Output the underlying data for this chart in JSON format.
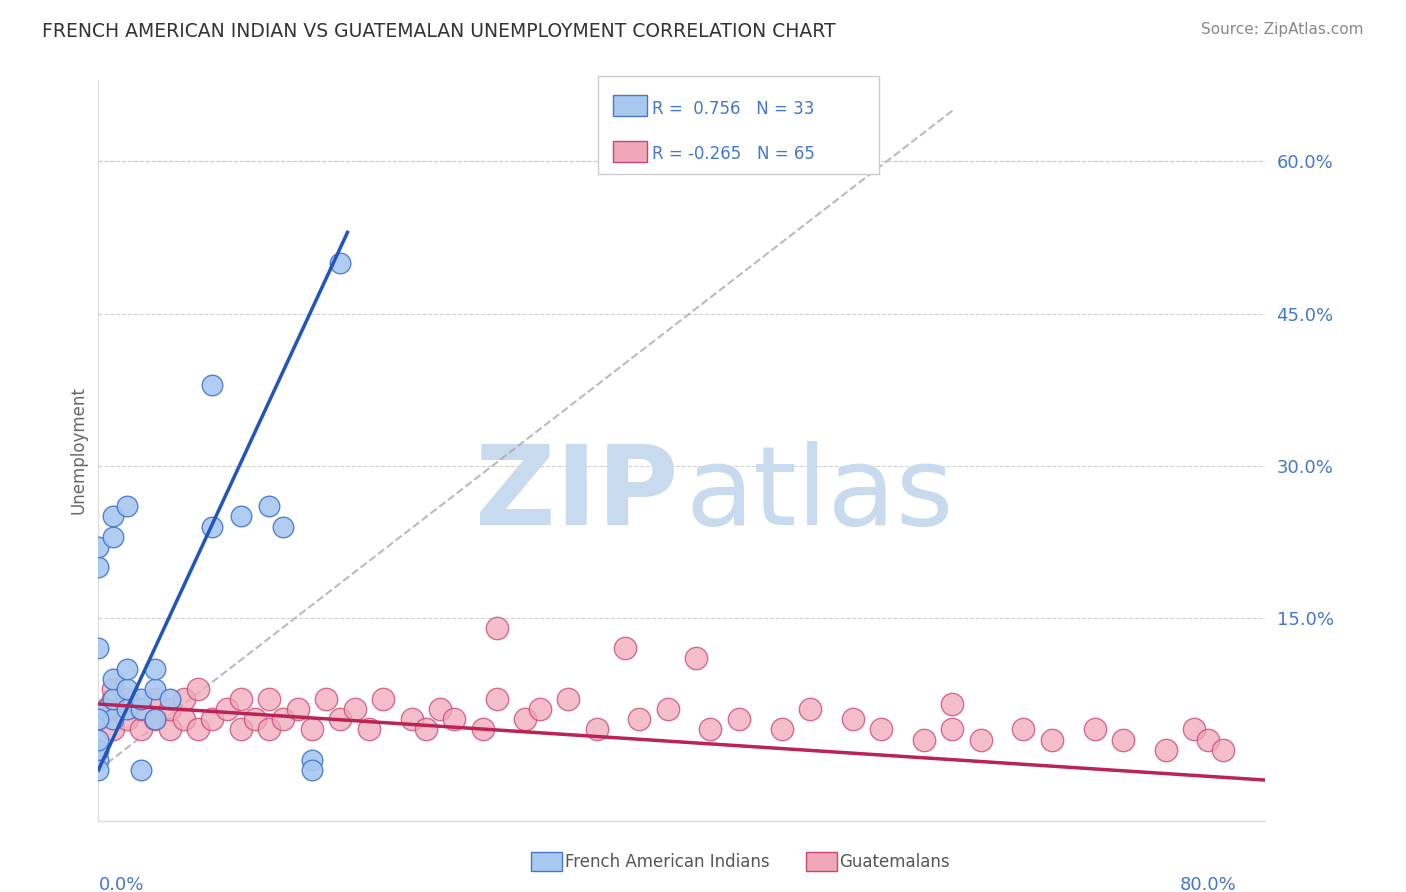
{
  "title": "FRENCH AMERICAN INDIAN VS GUATEMALAN UNEMPLOYMENT CORRELATION CHART",
  "source": "Source: ZipAtlas.com",
  "ylabel": "Unemployment",
  "ytick_vals": [
    0.0,
    0.15,
    0.3,
    0.45,
    0.6
  ],
  "ytick_labels": [
    "",
    "15.0%",
    "30.0%",
    "45.0%",
    "60.0%"
  ],
  "xlim": [
    0.0,
    0.82
  ],
  "ylim": [
    -0.05,
    0.68
  ],
  "blue_color": "#A8C8F0",
  "pink_color": "#F0A8B8",
  "blue_edge_color": "#4477CC",
  "pink_edge_color": "#CC4477",
  "blue_line_color": "#2255BB",
  "pink_line_color": "#BB2255",
  "tick_label_color": "#4477CC",
  "title_color": "#333333",
  "source_color": "#888888",
  "ylabel_color": "#666666",
  "grid_color": "#CCCCCC",
  "background_color": "#FFFFFF",
  "watermark_zip_color": "#C8DAEE",
  "watermark_atlas_color": "#C8DAEE",
  "legend_box_color": "#FFFFFF",
  "legend_border_color": "#CCCCCC",
  "legend_text_color": "#4477CC",
  "bottom_legend_text_color": "#555555",
  "blue_scatter_x": [
    0.005,
    0.01,
    0.01,
    0.01,
    0.02,
    0.02,
    0.02,
    0.03,
    0.03,
    0.04,
    0.04,
    0.04,
    0.05,
    0.0,
    0.0,
    0.0,
    0.0,
    0.0,
    0.0,
    0.0,
    0.01,
    0.01,
    0.02,
    0.08,
    0.08,
    0.1,
    0.12,
    0.13,
    0.15,
    0.15,
    0.17,
    0.0,
    0.03
  ],
  "blue_scatter_y": [
    0.06,
    0.05,
    0.07,
    0.09,
    0.06,
    0.08,
    0.1,
    0.06,
    0.07,
    0.05,
    0.08,
    0.1,
    0.07,
    0.01,
    0.02,
    0.03,
    0.12,
    0.2,
    0.22,
    0.05,
    0.25,
    0.23,
    0.26,
    0.24,
    0.38,
    0.25,
    0.26,
    0.24,
    0.01,
    0.0,
    0.5,
    0.0,
    0.0
  ],
  "pink_scatter_x": [
    0.0,
    0.005,
    0.01,
    0.01,
    0.01,
    0.02,
    0.02,
    0.03,
    0.03,
    0.04,
    0.04,
    0.05,
    0.05,
    0.06,
    0.06,
    0.07,
    0.07,
    0.08,
    0.09,
    0.1,
    0.1,
    0.11,
    0.12,
    0.12,
    0.13,
    0.14,
    0.15,
    0.16,
    0.17,
    0.18,
    0.19,
    0.2,
    0.22,
    0.23,
    0.24,
    0.25,
    0.27,
    0.28,
    0.3,
    0.31,
    0.33,
    0.35,
    0.37,
    0.38,
    0.4,
    0.42,
    0.43,
    0.45,
    0.48,
    0.5,
    0.53,
    0.55,
    0.58,
    0.6,
    0.62,
    0.65,
    0.67,
    0.7,
    0.72,
    0.75,
    0.77,
    0.78,
    0.79,
    0.6,
    0.28
  ],
  "pink_scatter_y": [
    0.05,
    0.06,
    0.04,
    0.07,
    0.08,
    0.05,
    0.07,
    0.04,
    0.06,
    0.05,
    0.07,
    0.04,
    0.06,
    0.05,
    0.07,
    0.04,
    0.08,
    0.05,
    0.06,
    0.04,
    0.07,
    0.05,
    0.04,
    0.07,
    0.05,
    0.06,
    0.04,
    0.07,
    0.05,
    0.06,
    0.04,
    0.07,
    0.05,
    0.04,
    0.06,
    0.05,
    0.04,
    0.14,
    0.05,
    0.06,
    0.07,
    0.04,
    0.12,
    0.05,
    0.06,
    0.11,
    0.04,
    0.05,
    0.04,
    0.06,
    0.05,
    0.04,
    0.03,
    0.04,
    0.03,
    0.04,
    0.03,
    0.04,
    0.03,
    0.02,
    0.04,
    0.03,
    0.02,
    0.065,
    0.07
  ],
  "blue_line_x": [
    0.0,
    0.175
  ],
  "blue_line_y": [
    0.0,
    0.53
  ],
  "pink_line_x": [
    0.0,
    0.82
  ],
  "pink_line_y": [
    0.065,
    -0.01
  ],
  "dash_line_x": [
    0.0,
    0.6
  ],
  "dash_line_y": [
    0.0,
    0.65
  ]
}
